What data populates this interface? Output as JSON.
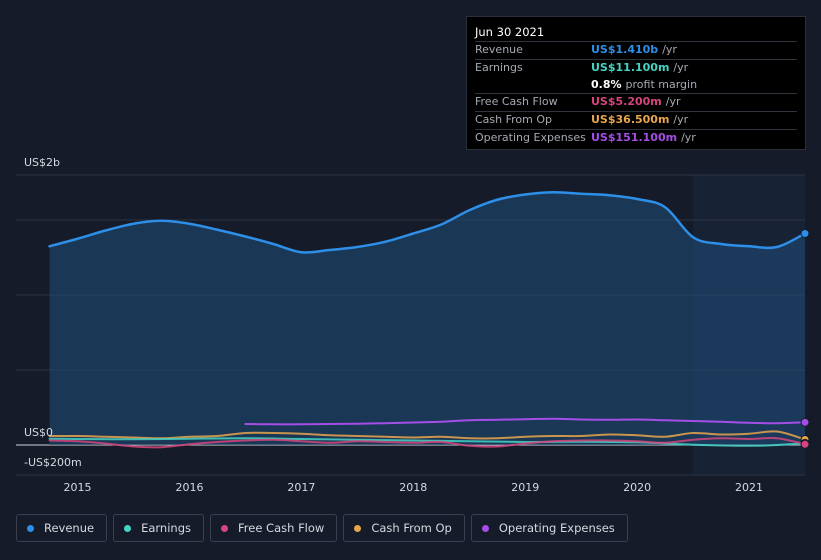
{
  "chart_data": {
    "type": "area",
    "y_axis": {
      "top_label": "US$2b",
      "zero_label": "US$0",
      "bottom_label": "-US$200m",
      "ylim_millions": [
        -200,
        1800
      ]
    },
    "x_ticks": [
      "2015",
      "2016",
      "2017",
      "2018",
      "2019",
      "2020",
      "2021"
    ],
    "x_tick_values": [
      2015,
      2016,
      2017,
      2018,
      2019,
      2020,
      2021
    ],
    "x_range": [
      2014.45,
      2021.5
    ],
    "forecast_start": 2020.5,
    "series": [
      {
        "name": "Revenue",
        "color": "#2d8fe8",
        "fill": true,
        "x": [
          2014.75,
          2015.0,
          2015.25,
          2015.5,
          2015.75,
          2016.0,
          2016.25,
          2016.5,
          2016.75,
          2017.0,
          2017.25,
          2017.5,
          2017.75,
          2018.0,
          2018.25,
          2018.5,
          2018.75,
          2019.0,
          2019.25,
          2019.5,
          2019.75,
          2020.0,
          2020.25,
          2020.5,
          2020.75,
          2021.0,
          2021.25,
          2021.5
        ],
        "y": [
          1325,
          1375,
          1430,
          1475,
          1495,
          1475,
          1435,
          1390,
          1340,
          1285,
          1300,
          1320,
          1355,
          1410,
          1470,
          1565,
          1635,
          1670,
          1685,
          1675,
          1665,
          1640,
          1585,
          1385,
          1340,
          1325,
          1320,
          1410
        ]
      },
      {
        "name": "Earnings",
        "color": "#45d4c4",
        "x": [
          2014.75,
          2015.0,
          2015.5,
          2016.0,
          2016.5,
          2017.0,
          2017.5,
          2018.0,
          2018.5,
          2019.0,
          2019.5,
          2020.0,
          2020.5,
          2021.0,
          2021.25,
          2021.5
        ],
        "y": [
          42,
          40,
          38,
          42,
          45,
          40,
          35,
          30,
          25,
          20,
          22,
          18,
          2,
          -5,
          0,
          11.1
        ]
      },
      {
        "name": "Free Cash Flow",
        "color": "#d6457e",
        "x": [
          2014.75,
          2015.0,
          2015.25,
          2015.5,
          2015.75,
          2016.0,
          2016.25,
          2016.5,
          2016.75,
          2017.0,
          2017.25,
          2017.5,
          2017.75,
          2018.0,
          2018.25,
          2018.5,
          2018.75,
          2019.0,
          2019.25,
          2019.5,
          2019.75,
          2020.0,
          2020.25,
          2020.5,
          2020.75,
          2021.0,
          2021.25,
          2021.5
        ],
        "y": [
          30,
          25,
          10,
          -10,
          -15,
          5,
          20,
          30,
          35,
          25,
          15,
          25,
          20,
          15,
          20,
          -5,
          -10,
          10,
          25,
          30,
          30,
          25,
          15,
          35,
          45,
          40,
          45,
          5.2
        ]
      },
      {
        "name": "Cash From Op",
        "color": "#e9a54c",
        "x": [
          2014.75,
          2015.0,
          2015.25,
          2015.5,
          2015.75,
          2016.0,
          2016.25,
          2016.5,
          2016.75,
          2017.0,
          2017.25,
          2017.5,
          2017.75,
          2018.0,
          2018.25,
          2018.5,
          2018.75,
          2019.0,
          2019.25,
          2019.5,
          2019.75,
          2020.0,
          2020.25,
          2020.5,
          2020.75,
          2021.0,
          2021.25,
          2021.5
        ],
        "y": [
          60,
          60,
          55,
          50,
          45,
          55,
          60,
          80,
          80,
          75,
          65,
          60,
          55,
          50,
          55,
          45,
          45,
          55,
          60,
          60,
          70,
          65,
          55,
          80,
          70,
          75,
          90,
          36.5
        ]
      },
      {
        "name": "Operating Expenses",
        "color": "#a44ee8",
        "x": [
          2016.5,
          2016.75,
          2017.0,
          2017.25,
          2017.5,
          2017.75,
          2018.0,
          2018.25,
          2018.5,
          2018.75,
          2019.0,
          2019.25,
          2019.5,
          2019.75,
          2020.0,
          2020.25,
          2020.5,
          2020.75,
          2021.0,
          2021.25,
          2021.5
        ],
        "y": [
          140,
          138,
          138,
          140,
          142,
          145,
          150,
          155,
          165,
          168,
          172,
          175,
          170,
          168,
          170,
          165,
          160,
          155,
          148,
          145,
          151.1
        ]
      }
    ]
  },
  "tooltip": {
    "date": "Jun 30 2021",
    "rows": [
      {
        "label": "Revenue",
        "value": "US$1.410b",
        "unit": "/yr",
        "color": "#2d8fe8"
      },
      {
        "label": "Earnings",
        "value": "US$11.100m",
        "unit": "/yr",
        "color": "#45d4c4"
      },
      {
        "label": "",
        "value": "0.8%",
        "unit": "profit margin",
        "color": "#ffffff"
      },
      {
        "label": "Free Cash Flow",
        "value": "US$5.200m",
        "unit": "/yr",
        "color": "#d6457e"
      },
      {
        "label": "Cash From Op",
        "value": "US$36.500m",
        "unit": "/yr",
        "color": "#e9a54c"
      },
      {
        "label": "Operating Expenses",
        "value": "US$151.100m",
        "unit": "/yr",
        "color": "#a44ee8"
      }
    ]
  },
  "legend": [
    {
      "label": "Revenue",
      "color": "#2d8fe8"
    },
    {
      "label": "Earnings",
      "color": "#45d4c4"
    },
    {
      "label": "Free Cash Flow",
      "color": "#d6457e"
    },
    {
      "label": "Cash From Op",
      "color": "#e9a54c"
    },
    {
      "label": "Operating Expenses",
      "color": "#a44ee8"
    }
  ]
}
